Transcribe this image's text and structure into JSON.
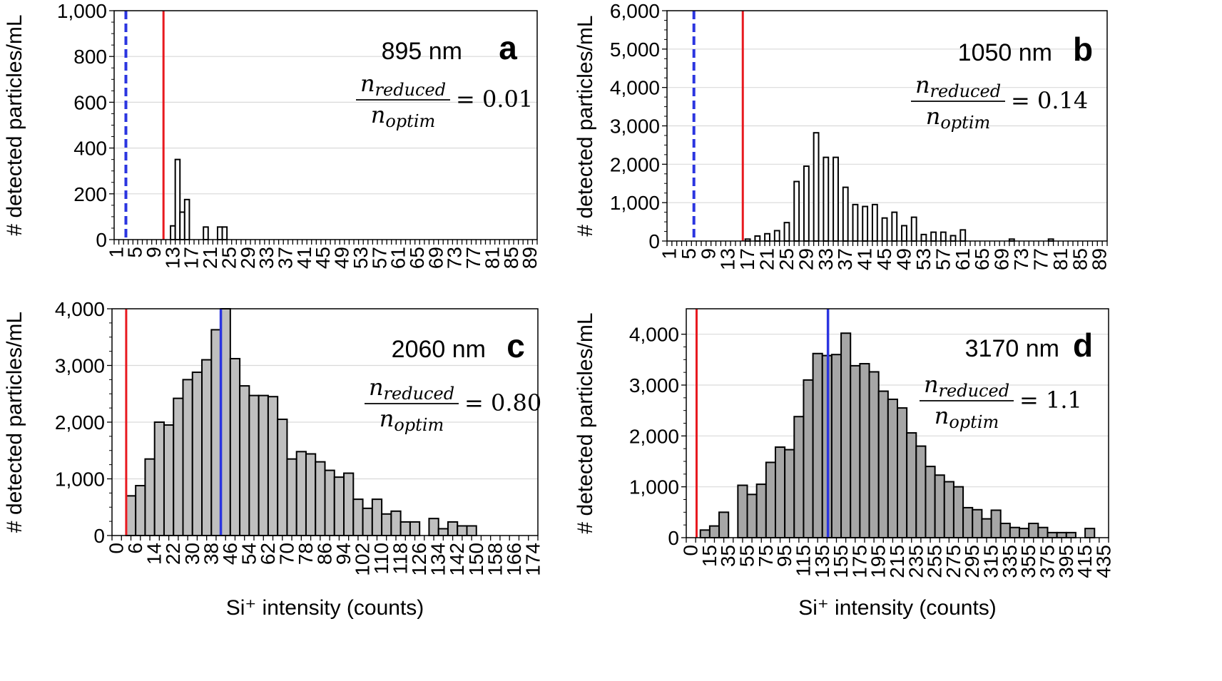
{
  "ylabel": "# detected particles/mL",
  "xlabel": "Si⁺ intensity (counts)",
  "ratio": {
    "num": "n",
    "num_sub": "reduced",
    "den": "n",
    "den_sub": "optim"
  },
  "colors": {
    "threshold_red": "#e8191f",
    "blue": "#2b35e0",
    "grid": "#d9d9d9",
    "bar_white": "#ffffff",
    "bar_gray": "#bfbfbf",
    "bar_gray_dark": "#a6a6a6"
  },
  "chart_data": [
    {
      "panel": "a",
      "type": "bar",
      "wavelength": "895 nm",
      "ratio_value": "= 0.01",
      "bar_color": "#ffffff",
      "x_start": 1,
      "x_step": 1,
      "n_bins": 90,
      "tick_every": 4,
      "xticks": [
        "1",
        "5",
        "9",
        "13",
        "17",
        "21",
        "25",
        "29",
        "33",
        "37",
        "41",
        "45",
        "49",
        "53",
        "57",
        "61",
        "65",
        "69",
        "73",
        "77",
        "81",
        "85",
        "89"
      ],
      "ylim": [
        0,
        1000
      ],
      "yticks": [
        "0",
        "200",
        "400",
        "600",
        "800",
        "1,000"
      ],
      "ytick_values": [
        0,
        200,
        400,
        600,
        800,
        1000
      ],
      "x": [
        12,
        13,
        14,
        15,
        16,
        17,
        18,
        19,
        20,
        21,
        22,
        23,
        24,
        25,
        26,
        27,
        28,
        29
      ],
      "values": [
        0,
        60,
        350,
        120,
        175,
        0,
        0,
        0,
        55,
        0,
        0,
        55,
        55,
        0,
        0,
        0,
        0,
        0
      ],
      "red_line_x": 11,
      "blue_line_x": 3,
      "blue_dashed": true
    },
    {
      "panel": "b",
      "type": "bar",
      "wavelength": "1050 nm",
      "ratio_value": "= 0.14",
      "bar_color": "#ffffff",
      "x_start": 1,
      "x_step": 1,
      "n_bins": 90,
      "tick_every": 4,
      "xticks": [
        "1",
        "5",
        "9",
        "13",
        "17",
        "21",
        "25",
        "29",
        "33",
        "37",
        "41",
        "45",
        "49",
        "53",
        "57",
        "61",
        "65",
        "69",
        "73",
        "77",
        "81",
        "85",
        "89"
      ],
      "ylim": [
        0,
        6000
      ],
      "yticks": [
        "0",
        "1,000",
        "2,000",
        "3,000",
        "4,000",
        "5,000",
        "6,000"
      ],
      "ytick_values": [
        0,
        1000,
        2000,
        3000,
        4000,
        5000,
        6000
      ],
      "x": [
        17,
        19,
        21,
        23,
        25,
        27,
        29,
        31,
        33,
        35,
        37,
        39,
        41,
        43,
        45,
        47,
        49,
        51,
        53,
        55,
        57,
        59,
        61,
        71,
        79
      ],
      "values": [
        50,
        130,
        190,
        270,
        480,
        1550,
        1950,
        2820,
        2180,
        2180,
        1400,
        950,
        900,
        950,
        600,
        750,
        400,
        620,
        170,
        230,
        230,
        140,
        290,
        50,
        50
      ],
      "red_line_x": 16,
      "blue_line_x": 6,
      "blue_dashed": true
    },
    {
      "panel": "c",
      "type": "bar",
      "wavelength": "2060 nm",
      "ratio_value": "= 0.80",
      "bar_color": "#bfbfbf",
      "x_start": 0,
      "x_step": 4,
      "n_bins": 45,
      "tick_every": 2,
      "xticks": [
        "0",
        "6",
        "14",
        "22",
        "30",
        "38",
        "46",
        "54",
        "62",
        "70",
        "78",
        "86",
        "94",
        "102",
        "110",
        "118",
        "126",
        "134",
        "142",
        "150",
        "158",
        "166",
        "174"
      ],
      "ylim": [
        0,
        4000
      ],
      "yticks": [
        "0",
        "1,000",
        "2,000",
        "3,000",
        "4,000"
      ],
      "ytick_values": [
        0,
        1000,
        2000,
        3000,
        4000
      ],
      "x": [
        6,
        10,
        14,
        18,
        22,
        26,
        30,
        34,
        38,
        42,
        46,
        50,
        54,
        58,
        62,
        66,
        70,
        74,
        78,
        82,
        86,
        90,
        94,
        98,
        102,
        106,
        110,
        114,
        118,
        122,
        126,
        130,
        134,
        138,
        142,
        146,
        150
      ],
      "values": [
        700,
        880,
        1350,
        2000,
        1950,
        2420,
        2750,
        2880,
        3100,
        3630,
        4000,
        3120,
        2640,
        2470,
        2470,
        2450,
        2050,
        1350,
        1480,
        1440,
        1300,
        1150,
        1030,
        1100,
        640,
        480,
        640,
        380,
        430,
        240,
        240,
        0,
        300,
        120,
        240,
        170,
        170
      ],
      "red_line_x": 4,
      "blue_line_x": 44,
      "blue_dashed": false
    },
    {
      "panel": "d",
      "type": "bar",
      "wavelength": "3170 nm",
      "ratio_value": "= 1.1",
      "bar_color": "#a6a6a6",
      "x_start": 0,
      "x_step": 10,
      "n_bins": 45,
      "tick_every": 2,
      "xticks": [
        "0",
        "15",
        "35",
        "55",
        "75",
        "95",
        "115",
        "135",
        "155",
        "175",
        "195",
        "215",
        "235",
        "255",
        "275",
        "295",
        "315",
        "335",
        "355",
        "375",
        "395",
        "415",
        "435"
      ],
      "ylim": [
        0,
        4500
      ],
      "yticks": [
        "0",
        "1,000",
        "2,000",
        "3,000",
        "4,000"
      ],
      "ytick_values": [
        0,
        1000,
        2000,
        3000,
        4000
      ],
      "x": [
        15,
        25,
        35,
        45,
        55,
        65,
        75,
        85,
        95,
        105,
        115,
        125,
        135,
        145,
        155,
        165,
        175,
        185,
        195,
        205,
        215,
        225,
        235,
        245,
        255,
        265,
        275,
        285,
        295,
        305,
        315,
        325,
        335,
        345,
        355,
        365,
        375,
        385,
        395,
        405,
        415,
        425,
        435
      ],
      "values": [
        150,
        230,
        500,
        0,
        1030,
        850,
        1050,
        1480,
        1780,
        1730,
        2380,
        3100,
        3620,
        3580,
        3600,
        4020,
        3380,
        3420,
        3260,
        2880,
        2720,
        2550,
        2060,
        1800,
        1400,
        1230,
        1100,
        1000,
        590,
        550,
        370,
        540,
        280,
        200,
        180,
        280,
        200,
        100,
        100,
        100,
        0,
        180,
        0
      ],
      "red_line_x": 6,
      "blue_line_x": 146,
      "blue_dashed": false
    }
  ]
}
